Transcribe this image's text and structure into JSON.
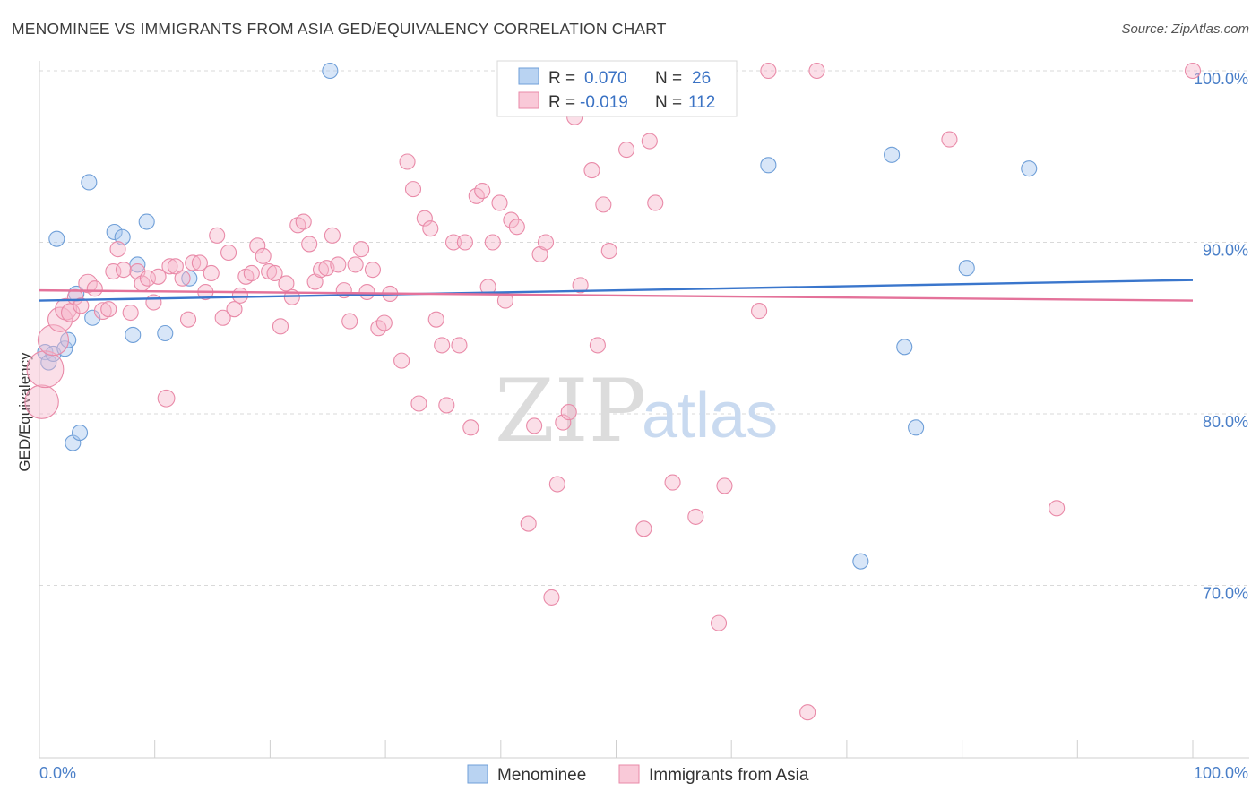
{
  "title": "MENOMINEE VS IMMIGRANTS FROM ASIA GED/EQUIVALENCY CORRELATION CHART",
  "source": "Source: ZipAtlas.com",
  "watermark": {
    "zip": "ZIP",
    "atlas": "atlas"
  },
  "legend": {
    "r_label": "R =",
    "n_label": "N =",
    "rows": [
      {
        "r": "0.070",
        "n": "26",
        "color": "#a9c8ef",
        "stroke": "#6f9fd8"
      },
      {
        "r": "-0.019",
        "n": "112",
        "color": "#f7b9cb",
        "stroke": "#e98aa8"
      }
    ]
  },
  "bottom_legend": [
    {
      "label": "Menominee",
      "color": "#b9d3f2",
      "stroke": "#6f9fd8"
    },
    {
      "label": "Immigrants from Asia",
      "color": "#f9c9d8",
      "stroke": "#e98aa8"
    }
  ],
  "chart_data": {
    "type": "scatter",
    "title": "MENOMINEE VS IMMIGRANTS FROM ASIA GED/EQUIVALENCY CORRELATION CHART",
    "xlabel": "",
    "ylabel": "GED/Equivalency",
    "xlim": [
      0,
      100
    ],
    "ylim": [
      60,
      100
    ],
    "x_tick_labels": [
      "0.0%",
      "100.0%"
    ],
    "y_ticks": [
      70,
      80,
      90,
      100
    ],
    "y_tick_labels": [
      "70.0%",
      "80.0%",
      "90.0%",
      "100.0%"
    ],
    "grid": "horizontal dashed",
    "legend_position": "top-center",
    "series": [
      {
        "name": "Menominee",
        "color": "#6f9fd8",
        "fill": "#a9c8ef",
        "trend": {
          "x": [
            0,
            100
          ],
          "y": [
            86.6,
            87.8
          ]
        },
        "points": [
          {
            "x": 0.5,
            "y": 83.6,
            "s": 1
          },
          {
            "x": 0.8,
            "y": 83.0,
            "s": 1
          },
          {
            "x": 1.2,
            "y": 83.5,
            "s": 1
          },
          {
            "x": 1.5,
            "y": 90.2,
            "s": 1
          },
          {
            "x": 2.2,
            "y": 83.8,
            "s": 1
          },
          {
            "x": 2.5,
            "y": 84.3,
            "s": 1
          },
          {
            "x": 2.9,
            "y": 78.3,
            "s": 1
          },
          {
            "x": 3.5,
            "y": 78.9,
            "s": 1
          },
          {
            "x": 3.2,
            "y": 87.0,
            "s": 1
          },
          {
            "x": 4.3,
            "y": 93.5,
            "s": 1
          },
          {
            "x": 4.6,
            "y": 85.6,
            "s": 1
          },
          {
            "x": 6.5,
            "y": 90.6,
            "s": 1
          },
          {
            "x": 7.2,
            "y": 90.3,
            "s": 1
          },
          {
            "x": 8.1,
            "y": 84.6,
            "s": 1
          },
          {
            "x": 8.5,
            "y": 88.7,
            "s": 1
          },
          {
            "x": 9.3,
            "y": 91.2,
            "s": 1
          },
          {
            "x": 10.9,
            "y": 84.7,
            "s": 1
          },
          {
            "x": 13.0,
            "y": 87.9,
            "s": 1
          },
          {
            "x": 25.2,
            "y": 100.0,
            "s": 1
          },
          {
            "x": 63.2,
            "y": 94.5,
            "s": 1
          },
          {
            "x": 71.2,
            "y": 71.4,
            "s": 1
          },
          {
            "x": 73.9,
            "y": 95.1,
            "s": 1
          },
          {
            "x": 75.0,
            "y": 83.9,
            "s": 1
          },
          {
            "x": 76.0,
            "y": 79.2,
            "s": 1
          },
          {
            "x": 80.4,
            "y": 88.5,
            "s": 1
          },
          {
            "x": 85.8,
            "y": 94.3,
            "s": 1
          }
        ]
      },
      {
        "name": "Immigrants from Asia",
        "color": "#e98aa8",
        "fill": "#f7b9cb",
        "trend": {
          "x": [
            0,
            100
          ],
          "y": [
            87.2,
            86.6
          ]
        },
        "points": [
          {
            "x": 0.2,
            "y": 80.7,
            "s": 2.2
          },
          {
            "x": 0.5,
            "y": 82.6,
            "s": 2.4
          },
          {
            "x": 1.2,
            "y": 84.3,
            "s": 2
          },
          {
            "x": 1.8,
            "y": 85.5,
            "s": 1.6
          },
          {
            "x": 2.3,
            "y": 86.1,
            "s": 1.4
          },
          {
            "x": 2.7,
            "y": 85.9,
            "s": 1.2
          },
          {
            "x": 3.1,
            "y": 86.8,
            "s": 1
          },
          {
            "x": 3.6,
            "y": 86.3,
            "s": 1
          },
          {
            "x": 4.2,
            "y": 87.6,
            "s": 1.2
          },
          {
            "x": 4.8,
            "y": 87.3,
            "s": 1
          },
          {
            "x": 5.5,
            "y": 86.0,
            "s": 1.1
          },
          {
            "x": 6.0,
            "y": 86.1,
            "s": 1
          },
          {
            "x": 6.4,
            "y": 88.3,
            "s": 1
          },
          {
            "x": 6.8,
            "y": 89.6,
            "s": 1
          },
          {
            "x": 7.3,
            "y": 88.4,
            "s": 1
          },
          {
            "x": 7.9,
            "y": 85.9,
            "s": 1
          },
          {
            "x": 8.5,
            "y": 88.3,
            "s": 1
          },
          {
            "x": 8.9,
            "y": 87.6,
            "s": 1
          },
          {
            "x": 9.4,
            "y": 87.9,
            "s": 1
          },
          {
            "x": 9.9,
            "y": 86.5,
            "s": 1
          },
          {
            "x": 10.3,
            "y": 88.0,
            "s": 1
          },
          {
            "x": 11.0,
            "y": 80.9,
            "s": 1.1
          },
          {
            "x": 11.3,
            "y": 88.6,
            "s": 1
          },
          {
            "x": 11.8,
            "y": 88.6,
            "s": 1
          },
          {
            "x": 12.4,
            "y": 87.9,
            "s": 1
          },
          {
            "x": 12.9,
            "y": 85.5,
            "s": 1
          },
          {
            "x": 13.3,
            "y": 88.8,
            "s": 1
          },
          {
            "x": 13.9,
            "y": 88.8,
            "s": 1
          },
          {
            "x": 14.4,
            "y": 87.1,
            "s": 1
          },
          {
            "x": 14.9,
            "y": 88.2,
            "s": 1
          },
          {
            "x": 15.4,
            "y": 90.4,
            "s": 1
          },
          {
            "x": 15.9,
            "y": 85.6,
            "s": 1
          },
          {
            "x": 16.4,
            "y": 89.4,
            "s": 1
          },
          {
            "x": 16.9,
            "y": 86.1,
            "s": 1
          },
          {
            "x": 17.4,
            "y": 86.9,
            "s": 1
          },
          {
            "x": 17.9,
            "y": 88.0,
            "s": 1
          },
          {
            "x": 18.4,
            "y": 88.2,
            "s": 1
          },
          {
            "x": 18.9,
            "y": 89.8,
            "s": 1
          },
          {
            "x": 19.4,
            "y": 89.2,
            "s": 1
          },
          {
            "x": 19.9,
            "y": 88.3,
            "s": 1
          },
          {
            "x": 20.4,
            "y": 88.2,
            "s": 1
          },
          {
            "x": 20.9,
            "y": 85.1,
            "s": 1
          },
          {
            "x": 21.4,
            "y": 87.6,
            "s": 1
          },
          {
            "x": 21.9,
            "y": 86.8,
            "s": 1
          },
          {
            "x": 22.4,
            "y": 91.0,
            "s": 1
          },
          {
            "x": 22.9,
            "y": 91.2,
            "s": 1
          },
          {
            "x": 23.4,
            "y": 89.9,
            "s": 1
          },
          {
            "x": 23.9,
            "y": 87.7,
            "s": 1
          },
          {
            "x": 24.4,
            "y": 88.4,
            "s": 1
          },
          {
            "x": 24.9,
            "y": 88.5,
            "s": 1
          },
          {
            "x": 25.4,
            "y": 90.4,
            "s": 1
          },
          {
            "x": 25.9,
            "y": 88.7,
            "s": 1
          },
          {
            "x": 26.4,
            "y": 87.2,
            "s": 1
          },
          {
            "x": 26.9,
            "y": 85.4,
            "s": 1
          },
          {
            "x": 27.4,
            "y": 88.7,
            "s": 1
          },
          {
            "x": 27.9,
            "y": 89.6,
            "s": 1
          },
          {
            "x": 28.4,
            "y": 87.1,
            "s": 1
          },
          {
            "x": 28.9,
            "y": 88.4,
            "s": 1
          },
          {
            "x": 29.4,
            "y": 85.0,
            "s": 1
          },
          {
            "x": 29.9,
            "y": 85.3,
            "s": 1
          },
          {
            "x": 30.4,
            "y": 87.0,
            "s": 1
          },
          {
            "x": 31.4,
            "y": 83.1,
            "s": 1
          },
          {
            "x": 31.9,
            "y": 94.7,
            "s": 1
          },
          {
            "x": 32.4,
            "y": 93.1,
            "s": 1
          },
          {
            "x": 32.9,
            "y": 80.6,
            "s": 1
          },
          {
            "x": 33.4,
            "y": 91.4,
            "s": 1
          },
          {
            "x": 33.9,
            "y": 90.8,
            "s": 1
          },
          {
            "x": 34.4,
            "y": 85.5,
            "s": 1
          },
          {
            "x": 34.9,
            "y": 84.0,
            "s": 1
          },
          {
            "x": 35.3,
            "y": 80.5,
            "s": 1
          },
          {
            "x": 35.9,
            "y": 90.0,
            "s": 1
          },
          {
            "x": 36.4,
            "y": 84.0,
            "s": 1
          },
          {
            "x": 36.9,
            "y": 90.0,
            "s": 1
          },
          {
            "x": 37.4,
            "y": 79.2,
            "s": 1
          },
          {
            "x": 37.9,
            "y": 92.7,
            "s": 1
          },
          {
            "x": 38.4,
            "y": 93.0,
            "s": 1
          },
          {
            "x": 38.9,
            "y": 87.4,
            "s": 1
          },
          {
            "x": 39.3,
            "y": 90.0,
            "s": 1
          },
          {
            "x": 39.9,
            "y": 92.3,
            "s": 1
          },
          {
            "x": 40.4,
            "y": 86.6,
            "s": 1
          },
          {
            "x": 40.9,
            "y": 91.3,
            "s": 1
          },
          {
            "x": 41.4,
            "y": 90.9,
            "s": 1
          },
          {
            "x": 42.4,
            "y": 73.6,
            "s": 1
          },
          {
            "x": 42.9,
            "y": 79.3,
            "s": 1
          },
          {
            "x": 43.4,
            "y": 89.3,
            "s": 1
          },
          {
            "x": 43.9,
            "y": 90.0,
            "s": 1
          },
          {
            "x": 44.4,
            "y": 69.3,
            "s": 1
          },
          {
            "x": 44.9,
            "y": 75.9,
            "s": 1
          },
          {
            "x": 45.4,
            "y": 79.5,
            "s": 1
          },
          {
            "x": 45.9,
            "y": 80.1,
            "s": 1
          },
          {
            "x": 46.4,
            "y": 97.3,
            "s": 1
          },
          {
            "x": 46.9,
            "y": 87.5,
            "s": 1
          },
          {
            "x": 47.9,
            "y": 94.2,
            "s": 1
          },
          {
            "x": 48.4,
            "y": 84.0,
            "s": 1
          },
          {
            "x": 48.9,
            "y": 92.2,
            "s": 1
          },
          {
            "x": 49.4,
            "y": 89.5,
            "s": 1
          },
          {
            "x": 50.9,
            "y": 95.4,
            "s": 1
          },
          {
            "x": 52.4,
            "y": 73.3,
            "s": 1
          },
          {
            "x": 52.9,
            "y": 95.9,
            "s": 1
          },
          {
            "x": 53.4,
            "y": 92.3,
            "s": 1
          },
          {
            "x": 54.4,
            "y": 98.5,
            "s": 1
          },
          {
            "x": 54.9,
            "y": 76.0,
            "s": 1
          },
          {
            "x": 56.9,
            "y": 74.0,
            "s": 1
          },
          {
            "x": 58.9,
            "y": 67.8,
            "s": 1
          },
          {
            "x": 59.4,
            "y": 75.8,
            "s": 1
          },
          {
            "x": 62.4,
            "y": 86.0,
            "s": 1
          },
          {
            "x": 63.2,
            "y": 100.0,
            "s": 1
          },
          {
            "x": 66.6,
            "y": 62.6,
            "s": 1
          },
          {
            "x": 67.4,
            "y": 100.0,
            "s": 1
          },
          {
            "x": 78.9,
            "y": 96.0,
            "s": 1
          },
          {
            "x": 88.2,
            "y": 74.5,
            "s": 1
          },
          {
            "x": 100.0,
            "y": 100.0,
            "s": 1
          }
        ]
      }
    ]
  }
}
